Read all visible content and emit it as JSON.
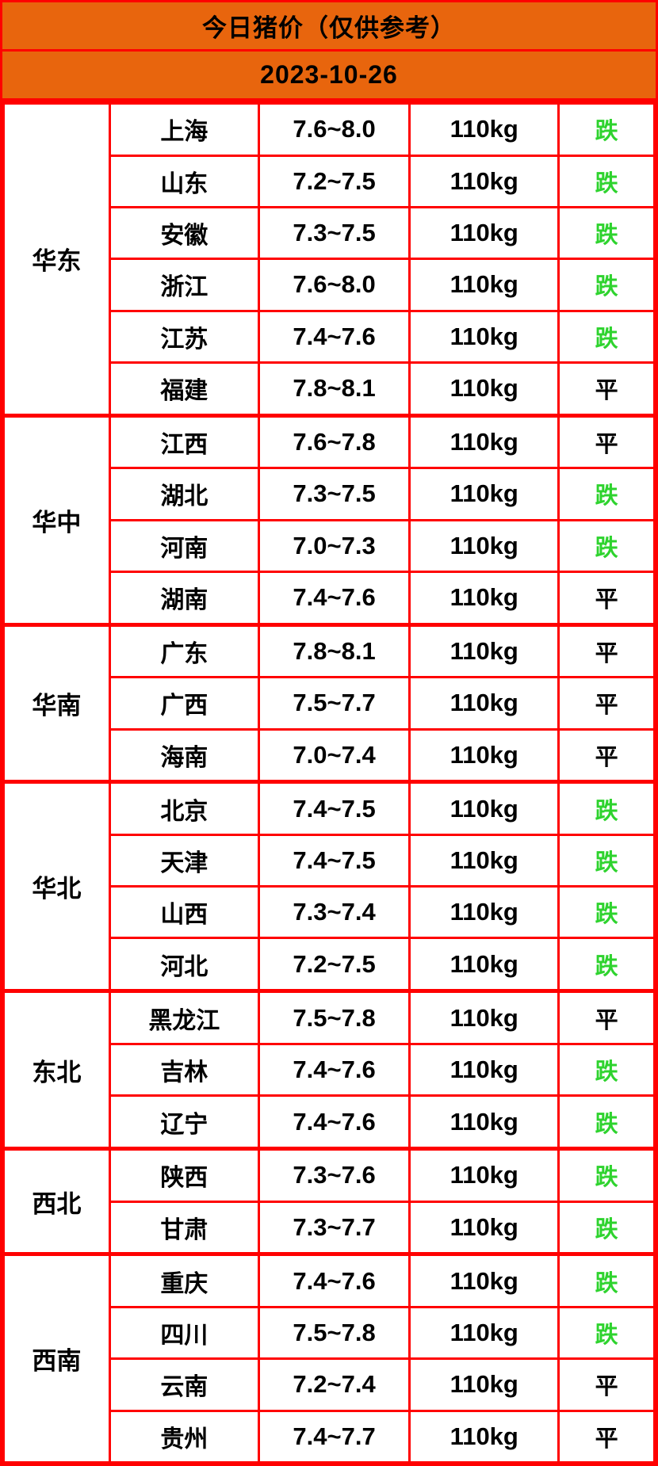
{
  "header": {
    "title": "今日猪价（仅供参考）",
    "date": "2023-10-26"
  },
  "colors": {
    "header_bg": "#E8650D",
    "border": "#FF0000",
    "status_down": "#2ED32E",
    "status_flat": "#000000"
  },
  "table": {
    "regions": [
      {
        "name": "华东",
        "rows": [
          {
            "province": "上海",
            "price": "7.6~8.0",
            "weight": "110kg",
            "status": "跌",
            "trend": "down"
          },
          {
            "province": "山东",
            "price": "7.2~7.5",
            "weight": "110kg",
            "status": "跌",
            "trend": "down"
          },
          {
            "province": "安徽",
            "price": "7.3~7.5",
            "weight": "110kg",
            "status": "跌",
            "trend": "down"
          },
          {
            "province": "浙江",
            "price": "7.6~8.0",
            "weight": "110kg",
            "status": "跌",
            "trend": "down"
          },
          {
            "province": "江苏",
            "price": "7.4~7.6",
            "weight": "110kg",
            "status": "跌",
            "trend": "down"
          },
          {
            "province": "福建",
            "price": "7.8~8.1",
            "weight": "110kg",
            "status": "平",
            "trend": "flat"
          }
        ]
      },
      {
        "name": "华中",
        "rows": [
          {
            "province": "江西",
            "price": "7.6~7.8",
            "weight": "110kg",
            "status": "平",
            "trend": "flat"
          },
          {
            "province": "湖北",
            "price": "7.3~7.5",
            "weight": "110kg",
            "status": "跌",
            "trend": "down"
          },
          {
            "province": "河南",
            "price": "7.0~7.3",
            "weight": "110kg",
            "status": "跌",
            "trend": "down"
          },
          {
            "province": "湖南",
            "price": "7.4~7.6",
            "weight": "110kg",
            "status": "平",
            "trend": "flat"
          }
        ]
      },
      {
        "name": "华南",
        "rows": [
          {
            "province": "广东",
            "price": "7.8~8.1",
            "weight": "110kg",
            "status": "平",
            "trend": "flat"
          },
          {
            "province": "广西",
            "price": "7.5~7.7",
            "weight": "110kg",
            "status": "平",
            "trend": "flat"
          },
          {
            "province": "海南",
            "price": "7.0~7.4",
            "weight": "110kg",
            "status": "平",
            "trend": "flat"
          }
        ]
      },
      {
        "name": "华北",
        "rows": [
          {
            "province": "北京",
            "price": "7.4~7.5",
            "weight": "110kg",
            "status": "跌",
            "trend": "down"
          },
          {
            "province": "天津",
            "price": "7.4~7.5",
            "weight": "110kg",
            "status": "跌",
            "trend": "down"
          },
          {
            "province": "山西",
            "price": "7.3~7.4",
            "weight": "110kg",
            "status": "跌",
            "trend": "down"
          },
          {
            "province": "河北",
            "price": "7.2~7.5",
            "weight": "110kg",
            "status": "跌",
            "trend": "down"
          }
        ]
      },
      {
        "name": "东北",
        "rows": [
          {
            "province": "黑龙江",
            "price": "7.5~7.8",
            "weight": "110kg",
            "status": "平",
            "trend": "flat"
          },
          {
            "province": "吉林",
            "price": "7.4~7.6",
            "weight": "110kg",
            "status": "跌",
            "trend": "down"
          },
          {
            "province": "辽宁",
            "price": "7.4~7.6",
            "weight": "110kg",
            "status": "跌",
            "trend": "down"
          }
        ]
      },
      {
        "name": "西北",
        "rows": [
          {
            "province": "陕西",
            "price": "7.3~7.6",
            "weight": "110kg",
            "status": "跌",
            "trend": "down"
          },
          {
            "province": "甘肃",
            "price": "7.3~7.7",
            "weight": "110kg",
            "status": "跌",
            "trend": "down"
          }
        ]
      },
      {
        "name": "西南",
        "rows": [
          {
            "province": "重庆",
            "price": "7.4~7.6",
            "weight": "110kg",
            "status": "跌",
            "trend": "down"
          },
          {
            "province": "四川",
            "price": "7.5~7.8",
            "weight": "110kg",
            "status": "跌",
            "trend": "down"
          },
          {
            "province": "云南",
            "price": "7.2~7.4",
            "weight": "110kg",
            "status": "平",
            "trend": "flat"
          },
          {
            "province": "贵州",
            "price": "7.4~7.7",
            "weight": "110kg",
            "status": "平",
            "trend": "flat"
          }
        ]
      }
    ]
  }
}
